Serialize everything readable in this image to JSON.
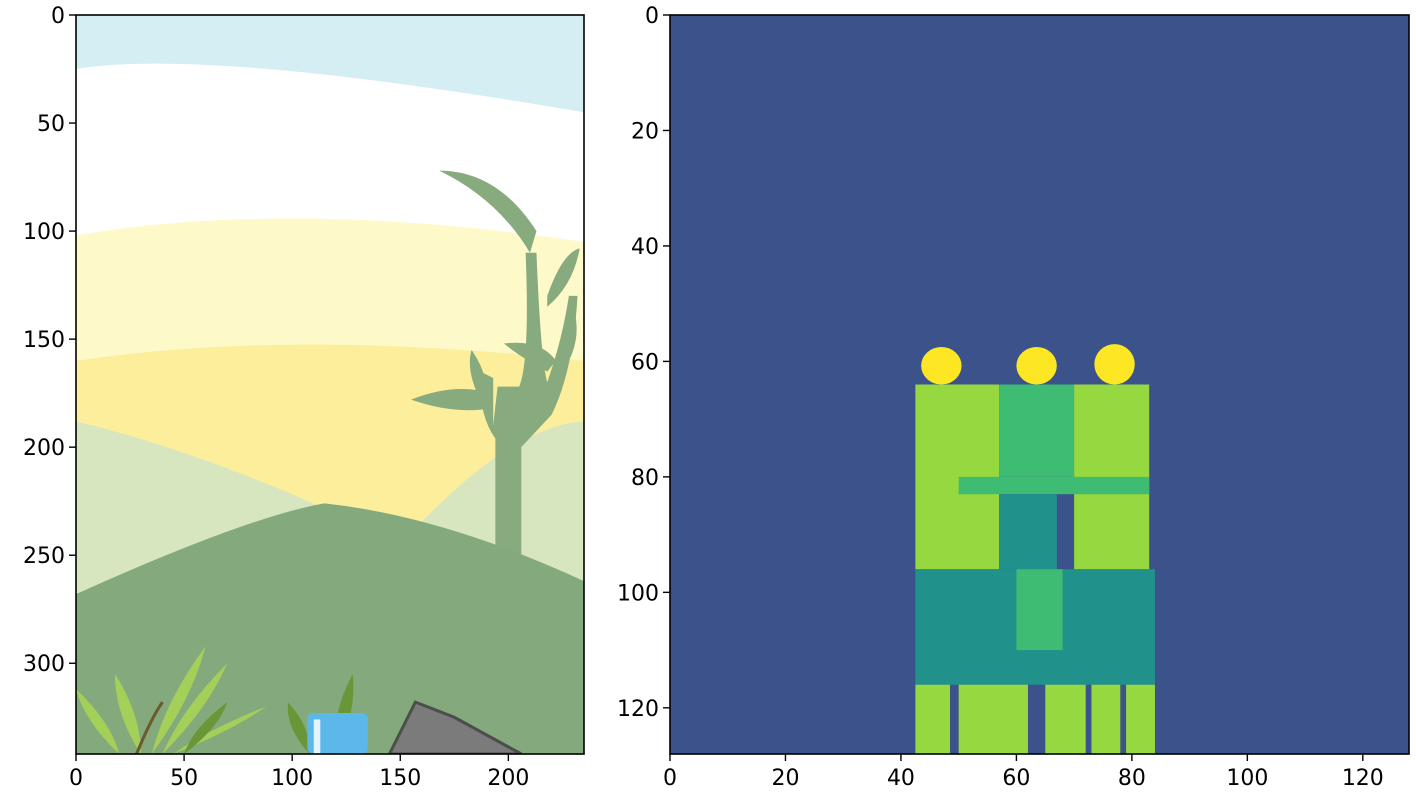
{
  "chart_data": [
    {
      "type": "image",
      "title": "",
      "xlabel": "",
      "ylabel": "",
      "xlim": [
        0,
        235
      ],
      "ylim": [
        342,
        0
      ],
      "xticks": [
        0,
        50,
        100,
        150,
        200
      ],
      "yticks": [
        0,
        50,
        100,
        150,
        200,
        250,
        300
      ],
      "content": "rgb-scene",
      "colors": {
        "sky": "#d4eef3",
        "cloud": "#ffffff",
        "pale_yellow": "#fef9c8",
        "yellow": "#fdee9c",
        "pale_hill": "#d8e6c0",
        "hill": "#83a97c",
        "plant": "#87aa7e",
        "fern": "#a4d05a",
        "fern_dark": "#6a9637",
        "cup": "#5cb8e8",
        "stone": "#7b7b7b"
      }
    },
    {
      "type": "heatmap",
      "title": "",
      "xlabel": "",
      "ylabel": "",
      "xlim": [
        0,
        128
      ],
      "ylim": [
        128,
        0
      ],
      "xticks": [
        0,
        20,
        40,
        60,
        80,
        100,
        120
      ],
      "yticks": [
        0,
        20,
        40,
        60,
        80,
        100,
        120
      ],
      "colormap": "viridis",
      "colors": {
        "background": "#3b528b",
        "teal": "#21918c",
        "green_mid": "#3fbc73",
        "green_light": "#95d840",
        "yellow": "#fde725"
      },
      "regions": [
        {
          "x0": 0,
          "x1": 128,
          "y0": 0,
          "y1": 128,
          "level": "background"
        },
        {
          "x0": 43.5,
          "x1": 50.5,
          "y0": 57.5,
          "y1": 64,
          "level": "yellow",
          "shape": "head"
        },
        {
          "x0": 60,
          "x1": 67,
          "y0": 57.5,
          "y1": 64,
          "level": "yellow",
          "shape": "head"
        },
        {
          "x0": 73.5,
          "x1": 80.5,
          "y0": 57,
          "y1": 64,
          "level": "yellow",
          "shape": "head"
        },
        {
          "x0": 42.5,
          "x1": 57,
          "y0": 64,
          "y1": 96,
          "level": "green_light"
        },
        {
          "x0": 57,
          "x1": 70,
          "y0": 64,
          "y1": 80,
          "level": "green_mid"
        },
        {
          "x0": 70,
          "x1": 83,
          "y0": 64,
          "y1": 96,
          "level": "green_light"
        },
        {
          "x0": 50,
          "x1": 83,
          "y0": 80,
          "y1": 83,
          "level": "green_mid"
        },
        {
          "x0": 57,
          "x1": 67,
          "y0": 83,
          "y1": 96,
          "level": "teal"
        },
        {
          "x0": 42.5,
          "x1": 84,
          "y0": 96,
          "y1": 116,
          "level": "teal"
        },
        {
          "x0": 60,
          "x1": 68,
          "y0": 96,
          "y1": 110,
          "level": "green_mid"
        },
        {
          "x0": 42.5,
          "x1": 48.5,
          "y0": 116,
          "y1": 128,
          "level": "green_light"
        },
        {
          "x0": 50,
          "x1": 62,
          "y0": 116,
          "y1": 128,
          "level": "green_light"
        },
        {
          "x0": 65,
          "x1": 72,
          "y0": 116,
          "y1": 128,
          "level": "green_light"
        },
        {
          "x0": 73,
          "x1": 78,
          "y0": 116,
          "y1": 128,
          "level": "green_light"
        },
        {
          "x0": 79,
          "x1": 84,
          "y0": 116,
          "y1": 128,
          "level": "green_light"
        }
      ]
    }
  ]
}
